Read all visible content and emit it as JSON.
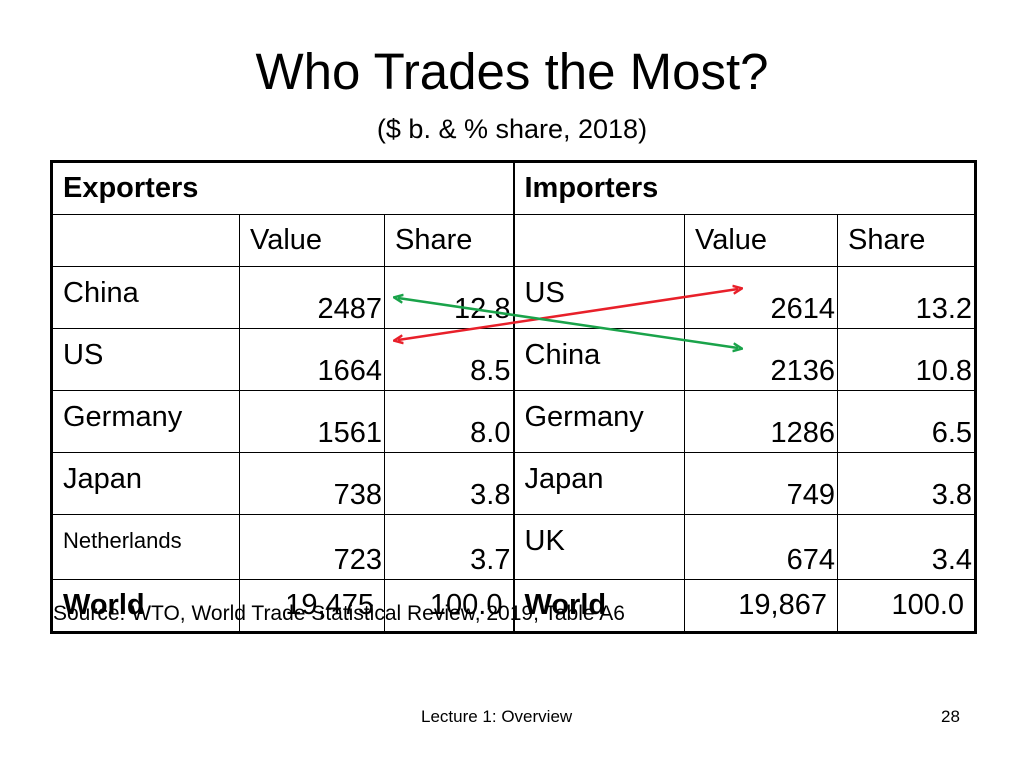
{
  "title": "Who Trades the Most?",
  "subtitle": "($ b. & % share, 2018)",
  "table": {
    "exporters_header": "Exporters",
    "importers_header": "Importers",
    "value_label": "Value",
    "share_label": "Share",
    "exporters": [
      {
        "name": "China",
        "value": "2487",
        "share": "12.8"
      },
      {
        "name": "US",
        "value": "1664",
        "share": "8.5"
      },
      {
        "name": "Germany",
        "value": "1561",
        "share": "8.0"
      },
      {
        "name": "Japan",
        "value": "738",
        "share": "3.8"
      },
      {
        "name": "Netherlands",
        "value": "723",
        "share": "3.7"
      }
    ],
    "importers": [
      {
        "name": "US",
        "value": "2614",
        "share": "13.2"
      },
      {
        "name": "China",
        "value": "2136",
        "share": "10.8"
      },
      {
        "name": "Germany",
        "value": "1286",
        "share": "6.5"
      },
      {
        "name": "Japan",
        "value": "749",
        "share": "3.8"
      },
      {
        "name": "UK",
        "value": "674",
        "share": "3.4"
      }
    ],
    "exporters_world": {
      "name": "World",
      "value": "19,475",
      "share": "100.0"
    },
    "importers_world": {
      "name": "World",
      "value": "19,867",
      "share": "100.0"
    }
  },
  "arrows": [
    {
      "color": "#e8202a"
    },
    {
      "color": "#1aa34a"
    }
  ],
  "source": "Source:  WTO, World Trade Statistical Review, 2019, Table A6",
  "footer": "Lecture 1:  Overview",
  "page_number": "28"
}
